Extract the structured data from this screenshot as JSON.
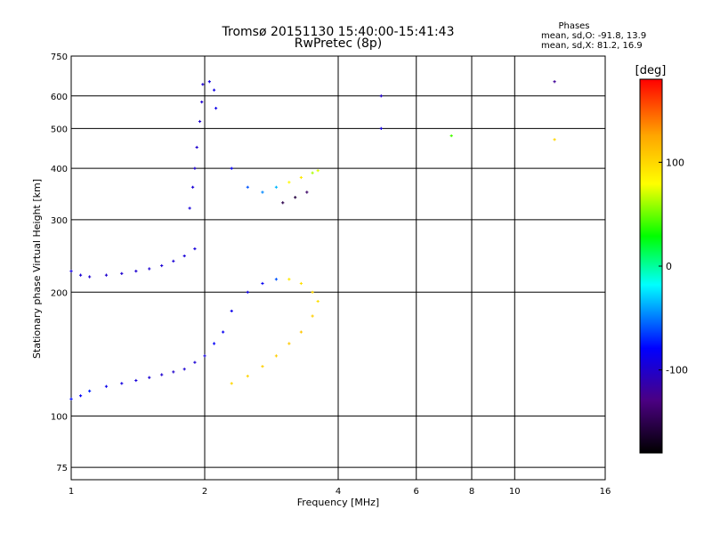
{
  "chart_data": {
    "type": "scatter",
    "title": "Tromsø 20151130 15:40:00-15:41:43",
    "subtitle": "RwPretec (8p)",
    "xlabel": "Frequency [MHz]",
    "ylabel": "Stationary phase Virtual Height [km]",
    "x_scale": "log",
    "y_scale": "log",
    "xlim": [
      1,
      16
    ],
    "ylim": [
      70,
      750
    ],
    "x_ticks": [
      1,
      2,
      4,
      6,
      8,
      10,
      16
    ],
    "y_ticks": [
      75,
      100,
      200,
      300,
      400,
      500,
      600,
      750
    ],
    "grid": true,
    "legend": {
      "heading": "Phases",
      "lines": [
        "mean, sd,O: -91.8, 13.9",
        "mean, sd,X:  81.2, 16.9"
      ]
    },
    "colorbar": {
      "label": "[deg]",
      "range": [
        -180,
        180
      ],
      "ticks": [
        -100,
        0,
        100
      ],
      "colors": [
        "#000000",
        "#4b0082",
        "#0000ff",
        "#00ffff",
        "#00ff00",
        "#ffff00",
        "#ffa500",
        "#ff0000"
      ]
    },
    "series": [
      {
        "color_phase": "mixed",
        "points": [
          [
            1.0,
            110,
            -75
          ],
          [
            1.05,
            112,
            -80
          ],
          [
            1.1,
            115,
            -70
          ],
          [
            1.2,
            118,
            -85
          ],
          [
            1.3,
            120,
            -90
          ],
          [
            1.4,
            122,
            -92
          ],
          [
            1.5,
            124,
            -95
          ],
          [
            1.6,
            126,
            -97
          ],
          [
            1.7,
            128,
            -98
          ],
          [
            1.8,
            130,
            -96
          ],
          [
            1.9,
            135,
            -95
          ],
          [
            2.0,
            140,
            -90
          ],
          [
            2.1,
            150,
            -80
          ],
          [
            2.2,
            160,
            -82
          ],
          [
            1.0,
            225,
            -90
          ],
          [
            1.05,
            220,
            -95
          ],
          [
            1.1,
            218,
            -96
          ],
          [
            1.2,
            220,
            -97
          ],
          [
            1.3,
            222,
            -97
          ],
          [
            1.4,
            225,
            -96
          ],
          [
            1.5,
            228,
            -95
          ],
          [
            1.6,
            232,
            -95
          ],
          [
            1.7,
            238,
            -94
          ],
          [
            1.8,
            245,
            -93
          ],
          [
            1.9,
            255,
            -92
          ],
          [
            1.85,
            320,
            -92
          ],
          [
            1.88,
            360,
            -94
          ],
          [
            1.9,
            400,
            -96
          ],
          [
            1.92,
            450,
            -97
          ],
          [
            1.95,
            520,
            -98
          ],
          [
            1.97,
            580,
            -97
          ],
          [
            1.98,
            640,
            -96
          ],
          [
            2.05,
            650,
            -90
          ],
          [
            2.1,
            620,
            -88
          ],
          [
            2.12,
            560,
            -86
          ],
          [
            2.3,
            400,
            -80
          ],
          [
            2.5,
            360,
            -60
          ],
          [
            2.7,
            350,
            -50
          ],
          [
            2.9,
            360,
            -40
          ],
          [
            3.1,
            370,
            80
          ],
          [
            3.3,
            380,
            90
          ],
          [
            3.5,
            390,
            60
          ],
          [
            3.6,
            395,
            70
          ],
          [
            2.3,
            180,
            -85
          ],
          [
            2.5,
            200,
            -88
          ],
          [
            2.7,
            210,
            -82
          ],
          [
            2.9,
            215,
            -60
          ],
          [
            3.1,
            215,
            90
          ],
          [
            3.3,
            210,
            95
          ],
          [
            3.5,
            200,
            100
          ],
          [
            3.6,
            190,
            95
          ],
          [
            2.3,
            120,
            100
          ],
          [
            2.5,
            125,
            102
          ],
          [
            2.7,
            132,
            104
          ],
          [
            2.9,
            140,
            106
          ],
          [
            3.1,
            150,
            108
          ],
          [
            3.3,
            160,
            110
          ],
          [
            3.5,
            175,
            105
          ],
          [
            3.0,
            330,
            -150
          ],
          [
            3.2,
            340,
            -155
          ],
          [
            3.4,
            350,
            -140
          ],
          [
            5.0,
            600,
            -100
          ],
          [
            5.0,
            500,
            -90
          ],
          [
            7.2,
            480,
            40
          ],
          [
            12.3,
            650,
            -120
          ],
          [
            12.3,
            470,
            100
          ]
        ]
      }
    ]
  }
}
